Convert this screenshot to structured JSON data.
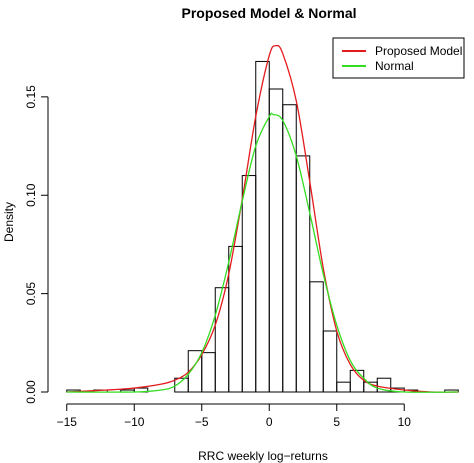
{
  "chart_data": {
    "type": "histogram",
    "title": "Proposed Model & Normal",
    "xlabel": "RRC weekly log−returns",
    "ylabel": "Density",
    "xlim": [
      -15.5,
      14.5
    ],
    "ylim": [
      0,
      0.185
    ],
    "x_ticks": [
      -15,
      -10,
      -5,
      0,
      5,
      10
    ],
    "x_tick_labels": [
      "−15",
      "−10",
      "−5",
      "0",
      "5",
      "10"
    ],
    "y_ticks": [
      0.0,
      0.05,
      0.1,
      0.15
    ],
    "y_tick_labels": [
      "0.00",
      "0.05",
      "0.10",
      "0.15"
    ],
    "grid": false,
    "legend_position": "top-right",
    "histogram": {
      "bin_width": 1,
      "bins": [
        {
          "x0": -15,
          "x1": -14,
          "density": 0.001
        },
        {
          "x0": -14,
          "x1": -13,
          "density": 0.0
        },
        {
          "x0": -13,
          "x1": -12,
          "density": 0.001
        },
        {
          "x0": -12,
          "x1": -11,
          "density": 0.0
        },
        {
          "x0": -11,
          "x1": -10,
          "density": 0.001
        },
        {
          "x0": -10,
          "x1": -9,
          "density": 0.002
        },
        {
          "x0": -9,
          "x1": -8,
          "density": 0.0
        },
        {
          "x0": -8,
          "x1": -7,
          "density": 0.0
        },
        {
          "x0": -7,
          "x1": -6,
          "density": 0.007
        },
        {
          "x0": -6,
          "x1": -5,
          "density": 0.021
        },
        {
          "x0": -5,
          "x1": -4,
          "density": 0.02
        },
        {
          "x0": -4,
          "x1": -3,
          "density": 0.053
        },
        {
          "x0": -3,
          "x1": -2,
          "density": 0.074
        },
        {
          "x0": -2,
          "x1": -1,
          "density": 0.11
        },
        {
          "x0": -1,
          "x1": 0,
          "density": 0.168
        },
        {
          "x0": 0,
          "x1": 1,
          "density": 0.154
        },
        {
          "x0": 1,
          "x1": 2,
          "density": 0.146
        },
        {
          "x0": 2,
          "x1": 3,
          "density": 0.12
        },
        {
          "x0": 3,
          "x1": 4,
          "density": 0.056
        },
        {
          "x0": 4,
          "x1": 5,
          "density": 0.031
        },
        {
          "x0": 5,
          "x1": 6,
          "density": 0.005
        },
        {
          "x0": 6,
          "x1": 7,
          "density": 0.011
        },
        {
          "x0": 7,
          "x1": 8,
          "density": 0.005
        },
        {
          "x0": 8,
          "x1": 9,
          "density": 0.007
        },
        {
          "x0": 9,
          "x1": 10,
          "density": 0.002
        },
        {
          "x0": 10,
          "x1": 11,
          "density": 0.001
        },
        {
          "x0": 11,
          "x1": 12,
          "density": 0.0
        },
        {
          "x0": 12,
          "x1": 13,
          "density": 0.0
        },
        {
          "x0": 13,
          "x1": 14,
          "density": 0.001
        }
      ]
    },
    "series": [
      {
        "name": "Proposed Model",
        "color": "#e41a1c",
        "x": [
          -15,
          -12,
          -10,
          -8,
          -7,
          -6,
          -5,
          -4,
          -3,
          -2,
          -1,
          0,
          0.5,
          1,
          2,
          3,
          4,
          5,
          6,
          7,
          8,
          10,
          12,
          14
        ],
        "y": [
          0.0,
          0.001,
          0.002,
          0.004,
          0.006,
          0.01,
          0.019,
          0.034,
          0.06,
          0.098,
          0.14,
          0.171,
          0.176,
          0.172,
          0.148,
          0.107,
          0.063,
          0.031,
          0.014,
          0.006,
          0.003,
          0.001,
          0.0,
          0.0
        ]
      },
      {
        "name": "Normal",
        "color": "#33dd22",
        "x": [
          -15,
          -10,
          -8,
          -7,
          -6,
          -5,
          -4,
          -3,
          -2,
          -1,
          0,
          0.3,
          1,
          2,
          3,
          4,
          5,
          6,
          7,
          8,
          10,
          14
        ],
        "y": [
          0.0,
          0.0,
          0.001,
          0.003,
          0.009,
          0.02,
          0.039,
          0.066,
          0.097,
          0.125,
          0.14,
          0.141,
          0.138,
          0.12,
          0.091,
          0.06,
          0.034,
          0.016,
          0.007,
          0.002,
          0.0,
          0.0
        ]
      }
    ]
  }
}
